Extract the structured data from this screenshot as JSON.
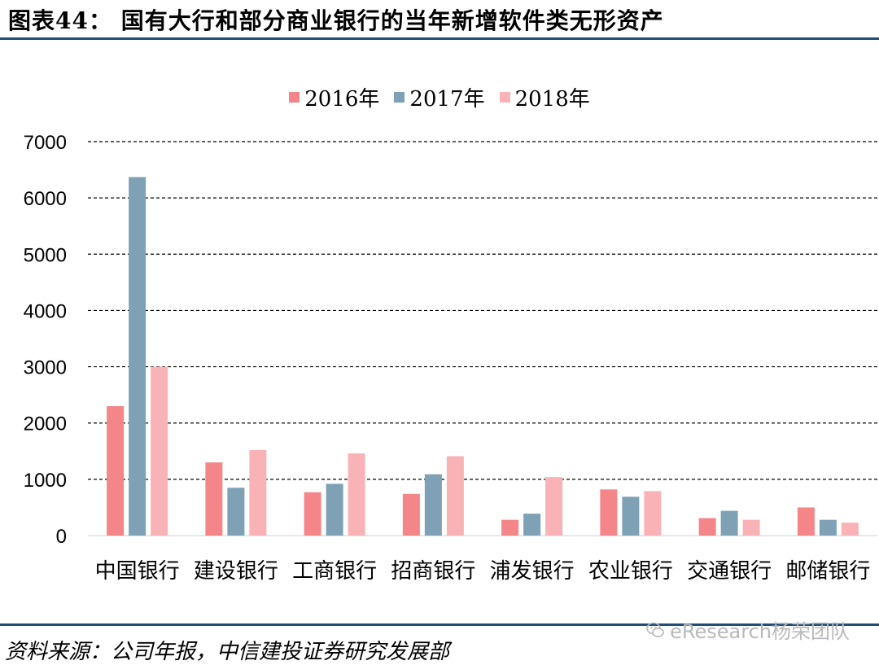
{
  "title": "图表44： 国有大行和部分商业银行的当年新增软件类无形资产",
  "source": "资料来源：公司年报，中信建投证券研究发展部",
  "watermark": "eResearch杨荣团队",
  "colors": {
    "s2016": "#f4868a",
    "s2017": "#7fa1b6",
    "s2018": "#f9b3b6",
    "rule": "#1f4e79"
  },
  "chart_data": {
    "type": "bar",
    "title": "",
    "xlabel": "",
    "ylabel": "",
    "ylim": [
      0,
      7000
    ],
    "yticks": [
      "0",
      "1000",
      "2000",
      "3000",
      "4000",
      "5000",
      "6000",
      "7000"
    ],
    "grid": true,
    "legend_position": "top-center",
    "categories": [
      "中国银行",
      "建设银行",
      "工商银行",
      "招商银行",
      "浦发银行",
      "农业银行",
      "交通银行",
      "邮储银行"
    ],
    "series": [
      {
        "name": "2016年",
        "values": [
          2300,
          1300,
          770,
          740,
          280,
          820,
          310,
          500
        ]
      },
      {
        "name": "2017年",
        "values": [
          6370,
          850,
          920,
          1090,
          390,
          690,
          440,
          280
        ]
      },
      {
        "name": "2018年",
        "values": [
          3000,
          1520,
          1460,
          1410,
          1040,
          790,
          280,
          230
        ]
      }
    ]
  }
}
